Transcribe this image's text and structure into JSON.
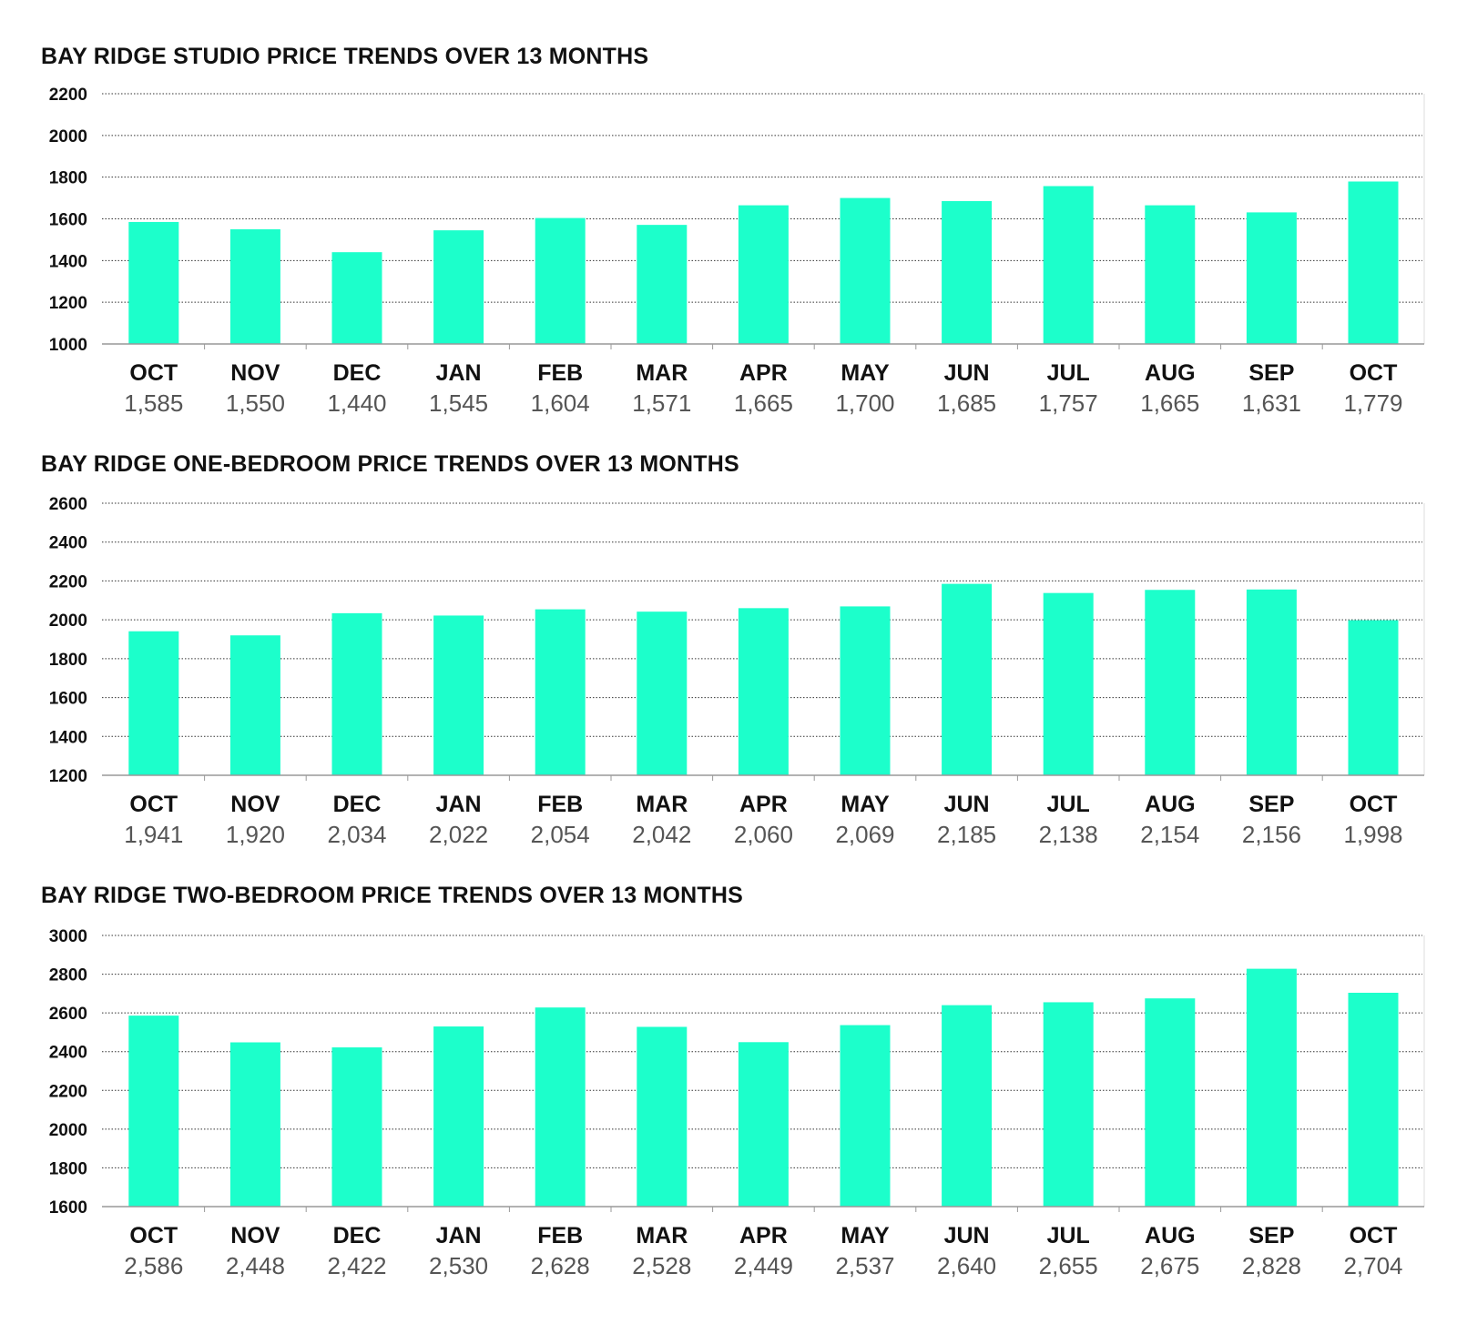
{
  "colors": {
    "bar": "#1cffcb",
    "grid": "#333333",
    "axis": "#999999",
    "text": "#111111",
    "value_text": "#555555"
  },
  "chart_data": [
    {
      "type": "bar",
      "title": "BAY RIDGE STUDIO PRICE TRENDS OVER 13 MONTHS",
      "categories": [
        "OCT",
        "NOV",
        "DEC",
        "JAN",
        "FEB",
        "MAR",
        "APR",
        "MAY",
        "JUN",
        "JUL",
        "AUG",
        "SEP",
        "OCT"
      ],
      "values": [
        1585,
        1550,
        1440,
        1545,
        1604,
        1571,
        1665,
        1700,
        1685,
        1757,
        1665,
        1631,
        1779
      ],
      "value_labels": [
        "1,585",
        "1,550",
        "1,440",
        "1,545",
        "1,604",
        "1,571",
        "1,665",
        "1,700",
        "1,685",
        "1,757",
        "1,665",
        "1,631",
        "1,779"
      ],
      "yticks": [
        "1000",
        "1200",
        "1400",
        "1600",
        "1800",
        "2000",
        "2200"
      ],
      "ylim": [
        1000,
        2200
      ],
      "grid": true
    },
    {
      "type": "bar",
      "title": "BAY RIDGE ONE-BEDROOM PRICE TRENDS OVER 13 MONTHS",
      "categories": [
        "OCT",
        "NOV",
        "DEC",
        "JAN",
        "FEB",
        "MAR",
        "APR",
        "MAY",
        "JUN",
        "JUL",
        "AUG",
        "SEP",
        "OCT"
      ],
      "values": [
        1941,
        1920,
        2034,
        2022,
        2054,
        2042,
        2060,
        2069,
        2185,
        2138,
        2154,
        2156,
        1998
      ],
      "value_labels": [
        "1,941",
        "1,920",
        "2,034",
        "2,022",
        "2,054",
        "2,042",
        "2,060",
        "2,069",
        "2,185",
        "2,138",
        "2,154",
        "2,156",
        "1,998"
      ],
      "yticks": [
        "1200",
        "1400",
        "1600",
        "1800",
        "2000",
        "2200",
        "2400",
        "2600"
      ],
      "ylim": [
        1200,
        2600
      ],
      "grid": true
    },
    {
      "type": "bar",
      "title": "BAY RIDGE TWO-BEDROOM PRICE TRENDS OVER 13 MONTHS",
      "categories": [
        "OCT",
        "NOV",
        "DEC",
        "JAN",
        "FEB",
        "MAR",
        "APR",
        "MAY",
        "JUN",
        "JUL",
        "AUG",
        "SEP",
        "OCT"
      ],
      "values": [
        2586,
        2448,
        2422,
        2530,
        2628,
        2528,
        2449,
        2537,
        2640,
        2655,
        2675,
        2828,
        2704
      ],
      "value_labels": [
        "2,586",
        "2,448",
        "2,422",
        "2,530",
        "2,628",
        "2,528",
        "2,449",
        "2,537",
        "2,640",
        "2,655",
        "2,675",
        "2,828",
        "2,704"
      ],
      "yticks": [
        "1600",
        "1800",
        "2000",
        "2200",
        "2400",
        "2600",
        "2800",
        "3000"
      ],
      "ylim": [
        1600,
        3000
      ],
      "grid": true
    }
  ]
}
